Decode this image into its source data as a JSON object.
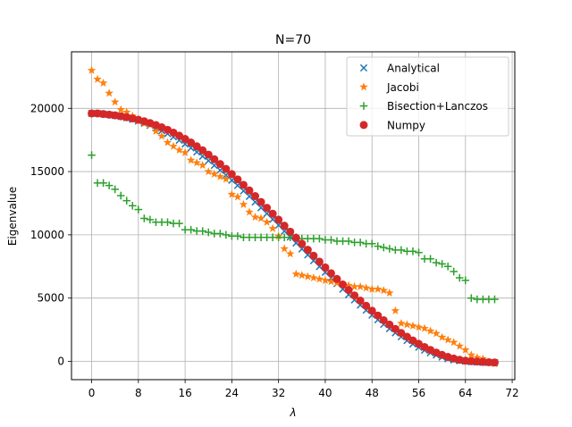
{
  "chart_data": {
    "type": "scatter",
    "title": "N=70",
    "xlabel": "λ",
    "ylabel": "Eigenvalue",
    "xlim": [
      -3.45,
      72.45
    ],
    "ylim": [
      -1450,
      24470
    ],
    "xticks": [
      0,
      8,
      16,
      24,
      32,
      40,
      48,
      56,
      64,
      72
    ],
    "yticks": [
      0,
      5000,
      10000,
      15000,
      20000
    ],
    "grid": true,
    "legend_position": "top-right",
    "colors": {
      "Analytical": "#1f77b4",
      "Jacobi": "#ff7f0e",
      "Bisection+Lanczos": "#2ca02c",
      "Numpy": "#d62728"
    },
    "series": [
      {
        "name": "Analytical",
        "marker": "x",
        "x": [
          0,
          1,
          2,
          3,
          4,
          5,
          6,
          7,
          8,
          9,
          10,
          11,
          12,
          13,
          14,
          15,
          16,
          17,
          18,
          19,
          20,
          21,
          22,
          23,
          24,
          25,
          26,
          27,
          28,
          29,
          30,
          31,
          32,
          33,
          34,
          35,
          36,
          37,
          38,
          39,
          40,
          41,
          42,
          43,
          44,
          45,
          46,
          47,
          48,
          49,
          50,
          51,
          52,
          53,
          54,
          55,
          56,
          57,
          58,
          59,
          60,
          61,
          62,
          63,
          64,
          65,
          66,
          67,
          68,
          69
        ],
        "y": [
          19600,
          19600,
          19540,
          19500,
          19430,
          19350,
          19250,
          19130,
          18990,
          18830,
          18650,
          18450,
          18230,
          17990,
          17740,
          17470,
          17180,
          16870,
          16550,
          16210,
          15860,
          15490,
          15110,
          14720,
          14310,
          13900,
          13470,
          13040,
          12590,
          12140,
          11680,
          11220,
          10760,
          10290,
          9820,
          9350,
          8880,
          8410,
          7950,
          7490,
          7030,
          6580,
          6140,
          5700,
          5270,
          4850,
          4440,
          4040,
          3650,
          3280,
          2920,
          2580,
          2250,
          1940,
          1640,
          1370,
          1110,
          880,
          670,
          490,
          330,
          200,
          100,
          40,
          0,
          -40,
          -70,
          -90,
          -100,
          -100
        ]
      },
      {
        "name": "Jacobi",
        "marker": "star",
        "x": [
          0,
          1,
          2,
          3,
          4,
          5,
          6,
          7,
          8,
          9,
          10,
          11,
          12,
          13,
          14,
          15,
          16,
          17,
          18,
          19,
          20,
          21,
          22,
          23,
          24,
          25,
          26,
          27,
          28,
          29,
          30,
          31,
          32,
          33,
          34,
          35,
          36,
          37,
          38,
          39,
          40,
          41,
          42,
          43,
          44,
          45,
          46,
          47,
          48,
          49,
          50,
          51,
          52,
          53,
          54,
          55,
          56,
          57,
          58,
          59,
          60,
          61,
          62,
          63,
          64,
          65,
          66,
          67,
          68,
          69
        ],
        "y": [
          23000,
          22300,
          22000,
          21200,
          20500,
          19900,
          19700,
          19400,
          19000,
          18800,
          18700,
          18200,
          17800,
          17300,
          17000,
          16700,
          16500,
          15900,
          15700,
          15500,
          15000,
          14800,
          14600,
          14400,
          13200,
          13000,
          12400,
          11800,
          11400,
          11300,
          11000,
          10500,
          9900,
          8900,
          8500,
          6900,
          6800,
          6700,
          6600,
          6500,
          6400,
          6300,
          6200,
          6100,
          6000,
          5900,
          5900,
          5800,
          5700,
          5700,
          5600,
          5400,
          4000,
          3000,
          2900,
          2800,
          2700,
          2600,
          2400,
          2200,
          1900,
          1700,
          1500,
          1200,
          900,
          500,
          300,
          200,
          -100,
          -200
        ]
      },
      {
        "name": "Bisection+Lanczos",
        "marker": "plus",
        "x": [
          0,
          1,
          2,
          3,
          4,
          5,
          6,
          7,
          8,
          9,
          10,
          11,
          12,
          13,
          14,
          15,
          16,
          17,
          18,
          19,
          20,
          21,
          22,
          23,
          24,
          25,
          26,
          27,
          28,
          29,
          30,
          31,
          32,
          33,
          34,
          35,
          36,
          37,
          38,
          39,
          40,
          41,
          42,
          43,
          44,
          45,
          46,
          47,
          48,
          49,
          50,
          51,
          52,
          53,
          54,
          55,
          56,
          57,
          58,
          59,
          60,
          61,
          62,
          63,
          64,
          65,
          66,
          67,
          68,
          69
        ],
        "y": [
          16300,
          14100,
          14100,
          13900,
          13600,
          13100,
          12700,
          12300,
          12000,
          11300,
          11200,
          11000,
          11000,
          11000,
          10900,
          10900,
          10400,
          10400,
          10300,
          10300,
          10200,
          10100,
          10100,
          10000,
          9900,
          9900,
          9800,
          9800,
          9800,
          9800,
          9800,
          9800,
          9800,
          9800,
          9800,
          9800,
          9700,
          9700,
          9700,
          9700,
          9600,
          9600,
          9500,
          9500,
          9500,
          9400,
          9400,
          9300,
          9300,
          9100,
          9000,
          8900,
          8800,
          8800,
          8700,
          8700,
          8600,
          8100,
          8100,
          7800,
          7700,
          7500,
          7100,
          6600,
          6400,
          5000,
          4900,
          4900,
          4900,
          4900
        ]
      },
      {
        "name": "Numpy",
        "marker": "circle",
        "x": [
          0,
          1,
          2,
          3,
          4,
          5,
          6,
          7,
          8,
          9,
          10,
          11,
          12,
          13,
          14,
          15,
          16,
          17,
          18,
          19,
          20,
          21,
          22,
          23,
          24,
          25,
          26,
          27,
          28,
          29,
          30,
          31,
          32,
          33,
          34,
          35,
          36,
          37,
          38,
          39,
          40,
          41,
          42,
          43,
          44,
          45,
          46,
          47,
          48,
          49,
          50,
          51,
          52,
          53,
          54,
          55,
          56,
          57,
          58,
          59,
          60,
          61,
          62,
          63,
          64,
          65,
          66,
          67,
          68,
          69
        ],
        "y": [
          19600,
          19600,
          19550,
          19500,
          19450,
          19380,
          19300,
          19200,
          19100,
          18980,
          18840,
          18680,
          18500,
          18300,
          18080,
          17840,
          17580,
          17300,
          17000,
          16680,
          16340,
          15980,
          15600,
          15210,
          14800,
          14380,
          13950,
          13510,
          13060,
          12600,
          12140,
          11670,
          11200,
          10720,
          10250,
          9770,
          9300,
          8820,
          8350,
          7880,
          7420,
          6960,
          6510,
          6070,
          5640,
          5210,
          4800,
          4390,
          4000,
          3620,
          3250,
          2900,
          2560,
          2240,
          1940,
          1650,
          1380,
          1130,
          900,
          690,
          510,
          350,
          220,
          120,
          50,
          10,
          -20,
          -50,
          -70,
          -90
        ]
      }
    ]
  }
}
